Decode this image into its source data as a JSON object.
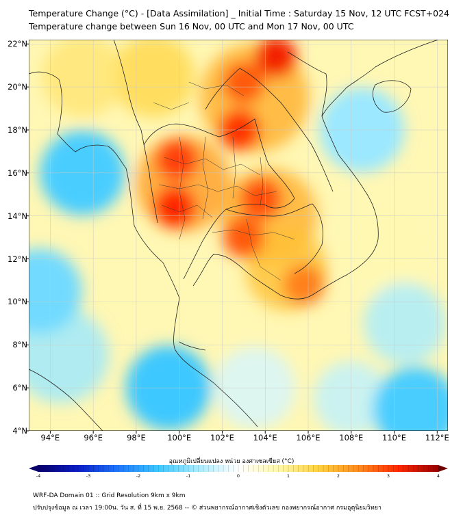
{
  "title": {
    "line1": "Temperature Change (°C) - [Data Assimilation] _ Initial Time : Saturday 15 Nov, 12 UTC FCST+024",
    "line2": "Temperature change between Sun 16 Nov, 00 UTC and Mon 17 Nov, 00 UTC"
  },
  "map": {
    "lat_labels": [
      "22°N",
      "20°N",
      "18°N",
      "16°N",
      "14°N",
      "12°N",
      "10°N",
      "8°N",
      "6°N",
      "4°N"
    ],
    "lon_labels": [
      "94°E",
      "96°E",
      "98°E",
      "100°E",
      "102°E",
      "104°E",
      "106°E",
      "108°E",
      "110°E",
      "112°E"
    ],
    "lat_range": [
      4,
      22.2
    ],
    "lon_range": [
      93,
      112.5
    ],
    "warm_areas": [
      {
        "name": "central-thailand-hotspot",
        "lon": 99.8,
        "lat": 14.4,
        "value": 3.2
      },
      {
        "name": "west-thailand-hotspot",
        "lon": 99.9,
        "lat": 16.6,
        "value": 3.0
      },
      {
        "name": "north-laos-hotspot",
        "lon": 102.8,
        "lat": 18.0,
        "value": 3.1
      },
      {
        "name": "south-china-hotspot",
        "lon": 104.5,
        "lat": 21.4,
        "value": 3.3
      },
      {
        "name": "north-vietnam-hotspot",
        "lon": 103.0,
        "lat": 20.2,
        "value": 2.8
      },
      {
        "name": "northeast-thailand-hotspot",
        "lon": 103.8,
        "lat": 14.8,
        "value": 2.9
      },
      {
        "name": "cambodia-hotspot",
        "lon": 103.0,
        "lat": 13.0,
        "value": 2.8
      },
      {
        "name": "south-vietnam-hotspot",
        "lon": 105.8,
        "lat": 10.8,
        "value": 2.5
      }
    ],
    "cool_areas": [
      {
        "name": "andaman-sea-cool-1",
        "lon": 95.5,
        "lat": 16.0,
        "value": -1.5
      },
      {
        "name": "andaman-sea-cool-2",
        "lon": 93.5,
        "lat": 10.5,
        "value": -1.2
      },
      {
        "name": "malay-peninsula-cool",
        "lon": 99.5,
        "lat": 6.0,
        "value": -1.6
      },
      {
        "name": "south-china-sea-cool",
        "lon": 111.0,
        "lat": 5.0,
        "value": -1.5
      },
      {
        "name": "gulf-of-tonkin-cool",
        "lon": 108.5,
        "lat": 18.0,
        "value": -0.9
      }
    ]
  },
  "colorbar": {
    "title": "อุณหภูมิเปลี่ยนแปลง หน่วย องศาเซลเซียส (°C)",
    "min": -4,
    "max": 4,
    "ticks": [
      "-4",
      "-3",
      "-2",
      "-1",
      "0",
      "1",
      "2",
      "3",
      "4"
    ],
    "colors": [
      "#08006b",
      "#0a1ec8",
      "#1e78ff",
      "#3cc8ff",
      "#a8ecff",
      "#ffffff",
      "#fff8a8",
      "#ffd23c",
      "#ff8c1e",
      "#ff2800",
      "#9b0000"
    ]
  },
  "footer": {
    "line1": "WRF-DA Domain 01 :: Grid Resolution 9km x 9km",
    "line2": "ปรับปรุงข้อมูล ณ เวลา 19:00น. วัน ส. ที่ 15 พ.ย. 2568 -- © ส่วนพยากรณ์อากาศเชิงตัวเลข กองพยากรณ์อากาศ กรมอุตุนิยมวิทยา"
  }
}
